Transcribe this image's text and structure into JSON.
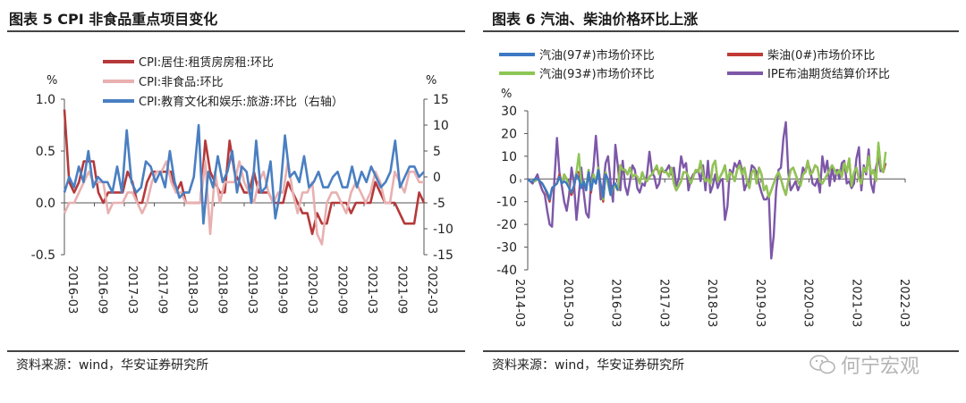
{
  "left_panel": {
    "title": "图表 5 CPI 非食品重点项目变化",
    "source": "资料来源：wind，华安证券研究所"
  },
  "right_panel": {
    "title": "图表 6  汽油、柴油价格环比上涨",
    "source": "资料来源：wind，华安证券研究所"
  },
  "watermark": "何宁宏观",
  "chart_data": [
    {
      "type": "line",
      "ylabel": "%",
      "y2label": "%",
      "ylim": [
        -0.5,
        1.0
      ],
      "y2lim": [
        -15,
        15
      ],
      "yticks": [
        "1.0",
        "0.5",
        "0.0",
        "-0.5"
      ],
      "y2ticks": [
        "15",
        "10",
        "5",
        "0",
        "-5",
        "-10",
        "-15"
      ],
      "xtick_labels": [
        "2016-03",
        "2016-09",
        "2017-03",
        "2017-09",
        "2018-03",
        "2018-09",
        "2019-03",
        "2019-09",
        "2020-03",
        "2020-09",
        "2021-03",
        "2021-09",
        "2022-03"
      ],
      "series": [
        {
          "name": "CPI:居住:租赁房房租:环比",
          "axis": "left",
          "color": "#b5393a",
          "values": [
            0.9,
            0.2,
            0.1,
            0.2,
            0.4,
            0.4,
            0.4,
            0.1,
            0.0,
            0.1,
            0.1,
            0.1,
            0.1,
            0.3,
            0.2,
            0.0,
            0.0,
            0.2,
            0.3,
            0.3,
            0.3,
            0.3,
            0.3,
            0.1,
            0.2,
            0.0,
            0.0,
            0.0,
            0.0,
            0.6,
            0.3,
            0.2,
            0.1,
            0.1,
            0.6,
            0.3,
            0.2,
            0.1,
            0.1,
            0.3,
            0.1,
            0.1,
            0.1,
            0.0,
            0.0,
            0.0,
            0.2,
            0.1,
            0.0,
            -0.1,
            -0.1,
            -0.3,
            -0.1,
            -0.2,
            -0.2,
            0.0,
            0.0,
            0.0,
            0.0,
            -0.1,
            0.0,
            0.0,
            0.0,
            0.0,
            0.2,
            0.1,
            0.0,
            0.0,
            0.0,
            -0.1,
            -0.2,
            -0.2,
            -0.2,
            0.1,
            0.0
          ]
        },
        {
          "name": "CPI:非食品:环比",
          "axis": "left",
          "color": "#e8b0b0",
          "values": [
            -0.1,
            0.0,
            0.0,
            0.1,
            0.2,
            0.3,
            0.2,
            0.2,
            0.2,
            -0.1,
            0.0,
            0.0,
            0.0,
            0.1,
            0.1,
            0.0,
            -0.1,
            0.0,
            0.2,
            0.3,
            0.3,
            0.4,
            0.2,
            0.1,
            0.1,
            0.0,
            0.0,
            0.0,
            0.0,
            0.4,
            -0.3,
            0.3,
            0.0,
            0.2,
            0.2,
            0.2,
            0.4,
            0.2,
            0.1,
            0.0,
            0.2,
            0.3,
            0.1,
            0.0,
            0.1,
            0.1,
            0.4,
            0.1,
            -0.1,
            0.1,
            0.1,
            0.2,
            -0.3,
            -0.4,
            0.0,
            0.1,
            0.1,
            0.0,
            -0.1,
            0.1,
            0.2,
            0.1,
            0.0,
            0.1,
            0.3,
            0.2,
            0.0,
            0.0,
            0.3,
            0.2,
            0.1,
            0.3,
            0.3,
            0.2,
            0.2
          ]
        },
        {
          "name": "CPI:教育文化和娱乐:旅游:环比（右轴）",
          "axis": "right",
          "color": "#4a7fc1",
          "values": [
            -3,
            0,
            -2,
            2,
            -1,
            5,
            -2,
            0,
            -1,
            -1,
            -3,
            2,
            -3,
            9,
            -1,
            -3,
            -2,
            3,
            2,
            -1,
            1,
            -2,
            5,
            -1,
            -4,
            -3,
            -3,
            0,
            10,
            -9,
            1,
            -2,
            4,
            -1,
            1,
            5,
            -3,
            2,
            1,
            -5,
            7,
            -3,
            -2,
            3,
            -8,
            -3,
            8,
            0,
            1,
            -1,
            4,
            -2,
            -1,
            1,
            -2,
            -2,
            0,
            1,
            -2,
            -2,
            2,
            -2,
            1,
            -1,
            2,
            0,
            -2,
            -1,
            1,
            7,
            -2,
            0,
            2,
            2,
            0,
            1
          ]
        }
      ]
    },
    {
      "type": "line",
      "ylabel": "%",
      "ylim": [
        -40,
        30
      ],
      "yticks": [
        "30",
        "20",
        "10",
        "0",
        "-10",
        "-20",
        "-30",
        "-40"
      ],
      "xtick_labels": [
        "2014-03",
        "2015-03",
        "2016-03",
        "2017-03",
        "2018-03",
        "2019-03",
        "2020-03",
        "2021-03",
        "2022-03"
      ],
      "series": [
        {
          "name": "汽油(97#)市场价环比",
          "color": "#3d78c4",
          "values": [
            0,
            -1,
            -1,
            0,
            0,
            -1,
            -2,
            -4,
            -6,
            -9,
            -4,
            -3,
            -2,
            1,
            -2,
            -1,
            -2,
            -4,
            -6,
            -3,
            2,
            0,
            -4,
            -1,
            -5,
            3,
            -5,
            0,
            -2,
            4,
            -3,
            -8,
            2,
            0,
            -7,
            -3,
            -2,
            -5
          ]
        },
        {
          "name": "柴油(0#)市场价环比",
          "color": "#c23a35",
          "values": [
            0,
            -1,
            -1,
            -1,
            0,
            -1,
            -2,
            -4,
            -7,
            -10,
            -4,
            -3,
            -2,
            2,
            -2,
            2,
            0,
            -4,
            -7,
            -4,
            3,
            3,
            -3,
            -1,
            -5,
            4,
            -6,
            2,
            -2,
            5,
            -3,
            -10,
            3,
            -2,
            -7,
            -4,
            -3,
            -5,
            6,
            4,
            4,
            2,
            5,
            1,
            2,
            1,
            -2,
            3,
            0,
            -1,
            1,
            2,
            4,
            5,
            2,
            4,
            3,
            3,
            1,
            5,
            -2,
            -5,
            -3,
            -1,
            3,
            3,
            1,
            -2,
            1,
            4,
            3,
            7,
            2,
            -1,
            0,
            -2,
            6,
            8,
            -1,
            1,
            3,
            6,
            -1,
            3,
            2,
            -1,
            4,
            6,
            2,
            5,
            -1,
            -4,
            3,
            4,
            -2,
            5,
            2,
            -5,
            -3,
            -8,
            -5,
            -2,
            1,
            3,
            0,
            -4,
            -7,
            -1,
            4,
            5,
            2,
            -1,
            -3,
            2,
            3,
            8,
            2,
            3,
            6,
            5,
            -1,
            -2,
            0,
            2,
            4,
            6,
            4,
            2,
            4,
            1,
            7,
            3,
            9,
            -3,
            3,
            5,
            0,
            -2,
            5,
            3,
            10,
            2,
            4,
            -1,
            15,
            5,
            3,
            7
          ]
        },
        {
          "name": "汽油(93#)市场价环比",
          "color": "#8dc655",
          "values": [
            0,
            -1,
            -1,
            -1,
            0,
            -1,
            -2,
            -4,
            -6,
            -9,
            -4,
            -3,
            -2,
            1,
            -2,
            2,
            0,
            -4,
            -6,
            -3,
            3,
            11,
            -3,
            -1,
            -4,
            4,
            -5,
            2,
            -2,
            5,
            -3,
            -9,
            3,
            -2,
            -7,
            -4,
            -3,
            -5,
            6,
            4,
            4,
            2,
            5,
            1,
            2,
            1,
            -2,
            3,
            0,
            -1,
            1,
            2,
            4,
            6,
            2,
            5,
            3,
            3,
            1,
            5,
            -2,
            -5,
            -3,
            -1,
            3,
            3,
            1,
            -2,
            1,
            4,
            3,
            8,
            2,
            -1,
            0,
            -2,
            6,
            8,
            -1,
            1,
            3,
            6,
            -1,
            3,
            2,
            -1,
            4,
            6,
            2,
            5,
            -1,
            -4,
            3,
            4,
            -2,
            5,
            2,
            -5,
            -3,
            -8,
            -5,
            -2,
            1,
            3,
            0,
            -4,
            -7,
            -1,
            4,
            5,
            2,
            -1,
            -3,
            2,
            3,
            8,
            2,
            3,
            6,
            5,
            -1,
            -2,
            0,
            2,
            4,
            6,
            4,
            2,
            4,
            1,
            7,
            3,
            9,
            -3,
            3,
            5,
            0,
            -2,
            5,
            3,
            10,
            2,
            4,
            -1,
            16,
            5,
            3,
            12
          ]
        },
        {
          "name": "IPE布油期货结算价环比",
          "color": "#7d57a8",
          "values": [
            0,
            -1,
            -2,
            0,
            2,
            -2,
            -5,
            -7,
            -14,
            -20,
            -21,
            0,
            18,
            3,
            -3,
            -10,
            -14,
            -7,
            5,
            -2,
            -18,
            -7,
            5,
            -6,
            -15,
            -17,
            -2,
            5,
            19,
            5,
            -9,
            -3,
            7,
            10,
            -1,
            -10,
            15,
            6,
            -5,
            8,
            -3,
            -7,
            -1,
            6,
            4,
            -4,
            -6,
            -2,
            -3,
            2,
            12,
            3,
            1,
            -4,
            -2,
            5,
            3,
            4,
            6,
            2,
            5,
            -3,
            0,
            10,
            5,
            7,
            -5,
            0,
            2,
            3,
            4,
            -1,
            6,
            -5,
            8,
            -6,
            -3,
            2,
            -4,
            -1,
            0,
            -18,
            -12,
            4,
            2,
            7,
            5,
            8,
            4,
            -5,
            -2,
            -1,
            6,
            5,
            3,
            -2,
            -6,
            -9,
            -9,
            -7,
            -35,
            -25,
            -5,
            4,
            5,
            18,
            25,
            3,
            -5,
            -3,
            -1,
            -5,
            -2,
            5,
            3,
            7,
            4,
            -2,
            -3,
            0,
            -6,
            10,
            3,
            8,
            -3,
            5,
            -1,
            4,
            0,
            7,
            8,
            -2,
            -1,
            -4,
            -2,
            9,
            14,
            -5,
            6,
            2,
            13,
            -2,
            -6,
            5,
            10,
            3
          ]
        }
      ]
    }
  ]
}
